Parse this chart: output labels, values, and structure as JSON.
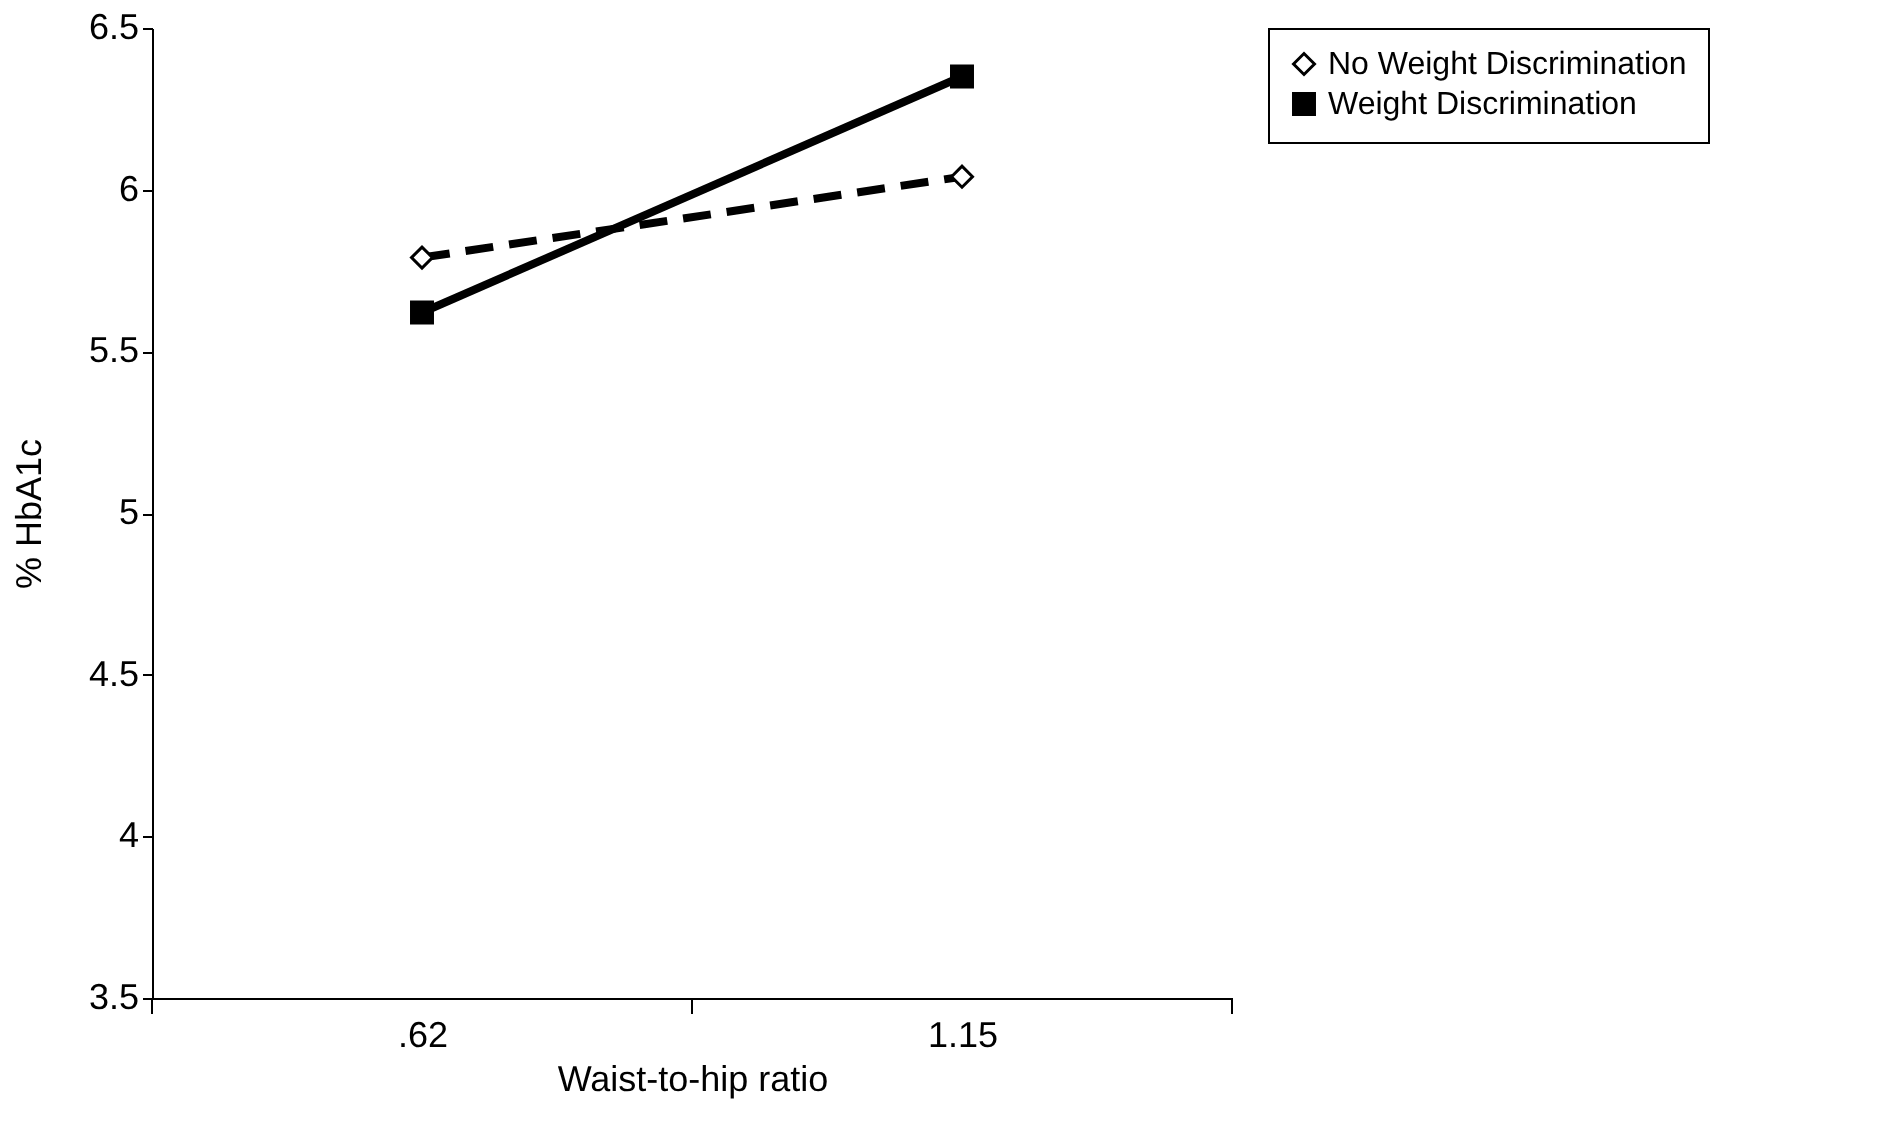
{
  "chart_data": {
    "type": "line",
    "xlabel": "Waist-to-hip ratio",
    "ylabel": "%    HbA1c",
    "categories": [
      ".62",
      "1.15"
    ],
    "ylim": [
      3.5,
      6.5
    ],
    "yticks": [
      3.5,
      4,
      4.5,
      5,
      5.5,
      6,
      6.5
    ],
    "grid": false,
    "legend": "right",
    "series": [
      {
        "name": "No Weight Discrimination",
        "color": "#000000",
        "values": [
          5.79,
          6.04
        ],
        "marker": "diamond",
        "line_style": "dashed"
      },
      {
        "name": "Weight Discrimination",
        "color": "#000000",
        "values": [
          5.62,
          6.35
        ],
        "marker": "square",
        "line_style": "solid"
      }
    ]
  }
}
